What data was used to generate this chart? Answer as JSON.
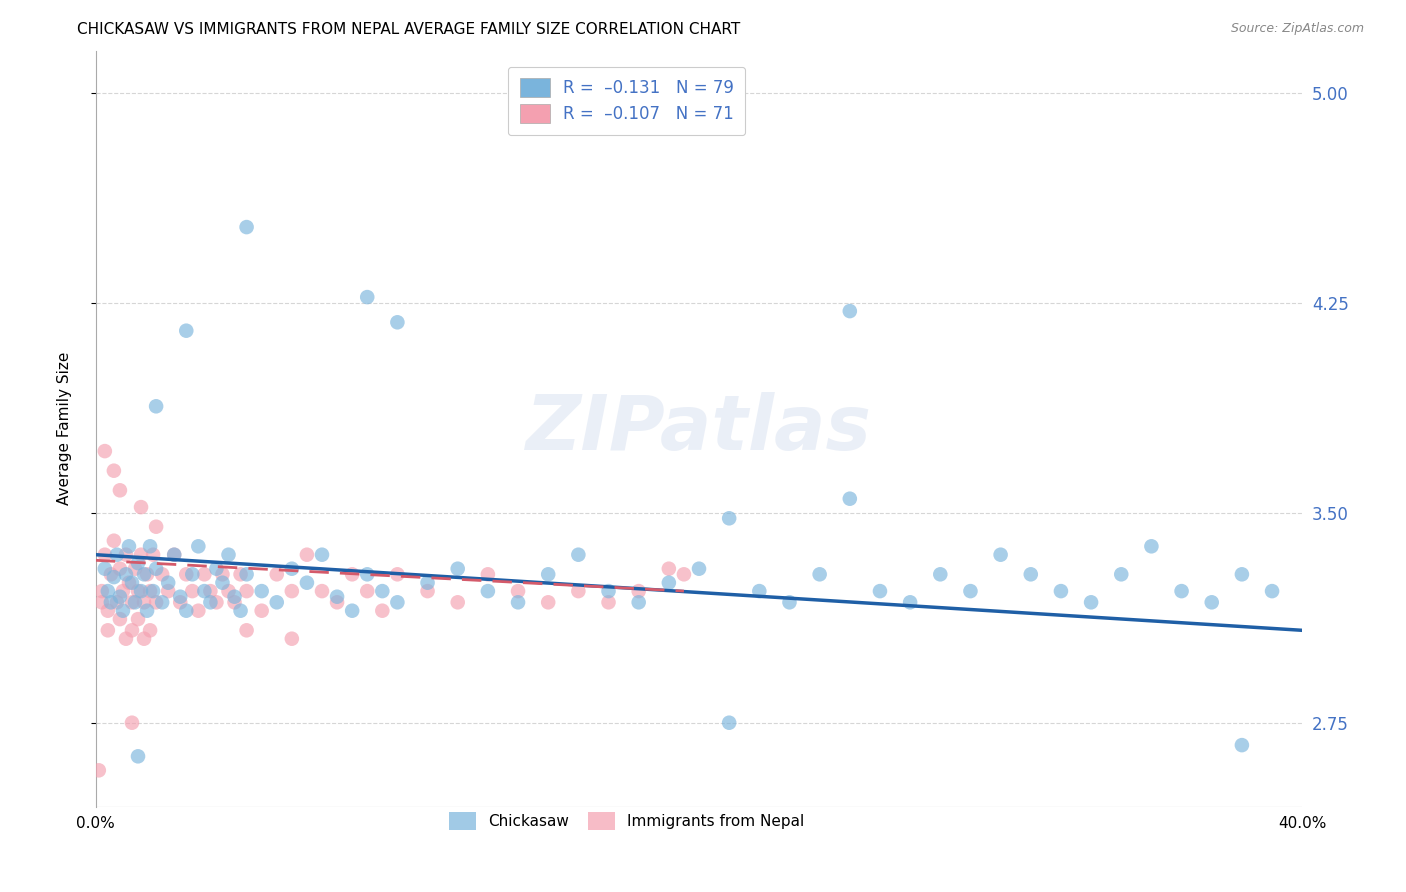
{
  "title": "CHICKASAW VS IMMIGRANTS FROM NEPAL AVERAGE FAMILY SIZE CORRELATION CHART",
  "source": "Source: ZipAtlas.com",
  "ylabel": "Average Family Size",
  "xlim": [
    0.0,
    0.4
  ],
  "ylim": [
    2.45,
    5.15
  ],
  "yticks": [
    2.75,
    3.5,
    4.25,
    5.0
  ],
  "xticks": [
    0.0,
    0.1,
    0.2,
    0.3,
    0.4
  ],
  "xticklabels": [
    "0.0%",
    "",
    "",
    "",
    "40.0%"
  ],
  "watermark": "ZIPatlas",
  "blue_color": "#7ab4dc",
  "pink_color": "#f4a0b0",
  "blue_line_color": "#1f5fa6",
  "pink_line_color": "#d45a6a",
  "blue_line_x": [
    0.0,
    0.4
  ],
  "blue_line_y": [
    3.35,
    3.08
  ],
  "pink_line_x": [
    0.0,
    0.195
  ],
  "pink_line_y": [
    3.33,
    3.22
  ],
  "bg_color": "#ffffff",
  "grid_color": "#cccccc",
  "title_fontsize": 11,
  "right_tick_color": "#4472c4",
  "watermark_color": "#ccd8ec",
  "watermark_fontsize": 55,
  "watermark_alpha": 0.4,
  "blue_points": [
    [
      0.003,
      3.3
    ],
    [
      0.004,
      3.22
    ],
    [
      0.005,
      3.18
    ],
    [
      0.006,
      3.27
    ],
    [
      0.007,
      3.35
    ],
    [
      0.008,
      3.2
    ],
    [
      0.009,
      3.15
    ],
    [
      0.01,
      3.28
    ],
    [
      0.011,
      3.38
    ],
    [
      0.012,
      3.25
    ],
    [
      0.013,
      3.18
    ],
    [
      0.014,
      3.32
    ],
    [
      0.015,
      3.22
    ],
    [
      0.016,
      3.28
    ],
    [
      0.017,
      3.15
    ],
    [
      0.018,
      3.38
    ],
    [
      0.019,
      3.22
    ],
    [
      0.02,
      3.3
    ],
    [
      0.022,
      3.18
    ],
    [
      0.024,
      3.25
    ],
    [
      0.026,
      3.35
    ],
    [
      0.028,
      3.2
    ],
    [
      0.03,
      3.15
    ],
    [
      0.032,
      3.28
    ],
    [
      0.034,
      3.38
    ],
    [
      0.036,
      3.22
    ],
    [
      0.038,
      3.18
    ],
    [
      0.04,
      3.3
    ],
    [
      0.042,
      3.25
    ],
    [
      0.044,
      3.35
    ],
    [
      0.046,
      3.2
    ],
    [
      0.048,
      3.15
    ],
    [
      0.05,
      3.28
    ],
    [
      0.055,
      3.22
    ],
    [
      0.06,
      3.18
    ],
    [
      0.065,
      3.3
    ],
    [
      0.07,
      3.25
    ],
    [
      0.075,
      3.35
    ],
    [
      0.08,
      3.2
    ],
    [
      0.085,
      3.15
    ],
    [
      0.09,
      3.28
    ],
    [
      0.095,
      3.22
    ],
    [
      0.1,
      3.18
    ],
    [
      0.11,
      3.25
    ],
    [
      0.12,
      3.3
    ],
    [
      0.13,
      3.22
    ],
    [
      0.14,
      3.18
    ],
    [
      0.15,
      3.28
    ],
    [
      0.16,
      3.35
    ],
    [
      0.17,
      3.22
    ],
    [
      0.18,
      3.18
    ],
    [
      0.19,
      3.25
    ],
    [
      0.2,
      3.3
    ],
    [
      0.21,
      3.48
    ],
    [
      0.22,
      3.22
    ],
    [
      0.23,
      3.18
    ],
    [
      0.24,
      3.28
    ],
    [
      0.25,
      3.55
    ],
    [
      0.26,
      3.22
    ],
    [
      0.27,
      3.18
    ],
    [
      0.28,
      3.28
    ],
    [
      0.29,
      3.22
    ],
    [
      0.3,
      3.35
    ],
    [
      0.31,
      3.28
    ],
    [
      0.32,
      3.22
    ],
    [
      0.33,
      3.18
    ],
    [
      0.34,
      3.28
    ],
    [
      0.35,
      3.38
    ],
    [
      0.36,
      3.22
    ],
    [
      0.37,
      3.18
    ],
    [
      0.38,
      3.28
    ],
    [
      0.39,
      3.22
    ],
    [
      0.02,
      3.88
    ],
    [
      0.03,
      4.15
    ],
    [
      0.05,
      4.52
    ],
    [
      0.09,
      4.27
    ],
    [
      0.1,
      4.18
    ],
    [
      0.25,
      4.22
    ],
    [
      0.38,
      2.67
    ],
    [
      0.014,
      2.63
    ],
    [
      0.21,
      2.75
    ]
  ],
  "pink_points": [
    [
      0.002,
      3.22
    ],
    [
      0.003,
      3.35
    ],
    [
      0.004,
      3.15
    ],
    [
      0.005,
      3.28
    ],
    [
      0.006,
      3.4
    ],
    [
      0.007,
      3.18
    ],
    [
      0.008,
      3.3
    ],
    [
      0.009,
      3.22
    ],
    [
      0.01,
      3.35
    ],
    [
      0.011,
      3.25
    ],
    [
      0.012,
      3.18
    ],
    [
      0.013,
      3.3
    ],
    [
      0.014,
      3.22
    ],
    [
      0.015,
      3.35
    ],
    [
      0.016,
      3.18
    ],
    [
      0.017,
      3.28
    ],
    [
      0.018,
      3.22
    ],
    [
      0.019,
      3.35
    ],
    [
      0.02,
      3.18
    ],
    [
      0.022,
      3.28
    ],
    [
      0.024,
      3.22
    ],
    [
      0.026,
      3.35
    ],
    [
      0.028,
      3.18
    ],
    [
      0.03,
      3.28
    ],
    [
      0.032,
      3.22
    ],
    [
      0.034,
      3.15
    ],
    [
      0.036,
      3.28
    ],
    [
      0.038,
      3.22
    ],
    [
      0.04,
      3.18
    ],
    [
      0.042,
      3.28
    ],
    [
      0.044,
      3.22
    ],
    [
      0.046,
      3.18
    ],
    [
      0.048,
      3.28
    ],
    [
      0.05,
      3.22
    ],
    [
      0.055,
      3.15
    ],
    [
      0.06,
      3.28
    ],
    [
      0.065,
      3.22
    ],
    [
      0.07,
      3.35
    ],
    [
      0.075,
      3.22
    ],
    [
      0.08,
      3.18
    ],
    [
      0.085,
      3.28
    ],
    [
      0.09,
      3.22
    ],
    [
      0.095,
      3.15
    ],
    [
      0.1,
      3.28
    ],
    [
      0.11,
      3.22
    ],
    [
      0.12,
      3.18
    ],
    [
      0.13,
      3.28
    ],
    [
      0.14,
      3.22
    ],
    [
      0.15,
      3.18
    ],
    [
      0.16,
      3.22
    ],
    [
      0.17,
      3.18
    ],
    [
      0.18,
      3.22
    ],
    [
      0.19,
      3.3
    ],
    [
      0.195,
      3.28
    ],
    [
      0.003,
      3.72
    ],
    [
      0.006,
      3.65
    ],
    [
      0.008,
      3.58
    ],
    [
      0.015,
      3.52
    ],
    [
      0.02,
      3.45
    ],
    [
      0.002,
      3.18
    ],
    [
      0.004,
      3.08
    ],
    [
      0.008,
      3.12
    ],
    [
      0.01,
      3.05
    ],
    [
      0.012,
      3.08
    ],
    [
      0.014,
      3.12
    ],
    [
      0.016,
      3.05
    ],
    [
      0.018,
      3.08
    ],
    [
      0.012,
      2.75
    ],
    [
      0.05,
      3.08
    ],
    [
      0.065,
      3.05
    ],
    [
      0.001,
      2.58
    ]
  ]
}
